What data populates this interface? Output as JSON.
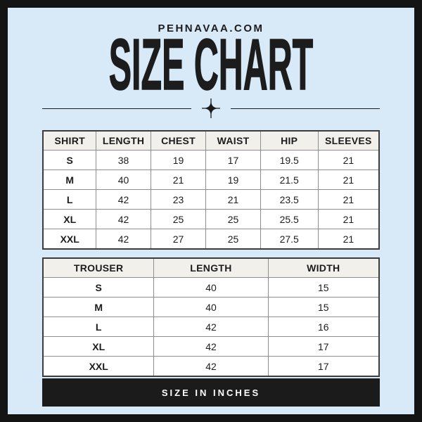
{
  "header": {
    "brand": "PEHNAVAA.COM",
    "title": "SIZE CHART"
  },
  "shirt_table": {
    "headers": [
      "SHIRT",
      "LENGTH",
      "CHEST",
      "WAIST",
      "HIP",
      "SLEEVES"
    ],
    "rows": [
      [
        "S",
        "38",
        "19",
        "17",
        "19.5",
        "21"
      ],
      [
        "M",
        "40",
        "21",
        "19",
        "21.5",
        "21"
      ],
      [
        "L",
        "42",
        "23",
        "21",
        "23.5",
        "21"
      ],
      [
        "XL",
        "42",
        "25",
        "25",
        "25.5",
        "21"
      ],
      [
        "XXL",
        "42",
        "27",
        "25",
        "27.5",
        "21"
      ]
    ]
  },
  "trouser_table": {
    "headers": [
      "TROUSER",
      "LENGTH",
      "WIDTH"
    ],
    "rows": [
      [
        "S",
        "40",
        "15"
      ],
      [
        "M",
        "40",
        "15"
      ],
      [
        "L",
        "42",
        "16"
      ],
      [
        "XL",
        "42",
        "17"
      ],
      [
        "XXL",
        "42",
        "17"
      ]
    ]
  },
  "footer": {
    "label": "SIZE IN INCHES"
  },
  "icons": {
    "divider_star": "four-point-sparkle"
  },
  "colors": {
    "background": "#d8e9f8",
    "frame": "#141414",
    "text": "#1c1c1c",
    "header_bg": "#f1f0eb",
    "cell_bg": "#ffffff",
    "border_outer": "#3c3c3c",
    "border_inner": "#8e8e8e",
    "footer_bg": "#1b1b1b",
    "footer_text": "#ffffff"
  }
}
